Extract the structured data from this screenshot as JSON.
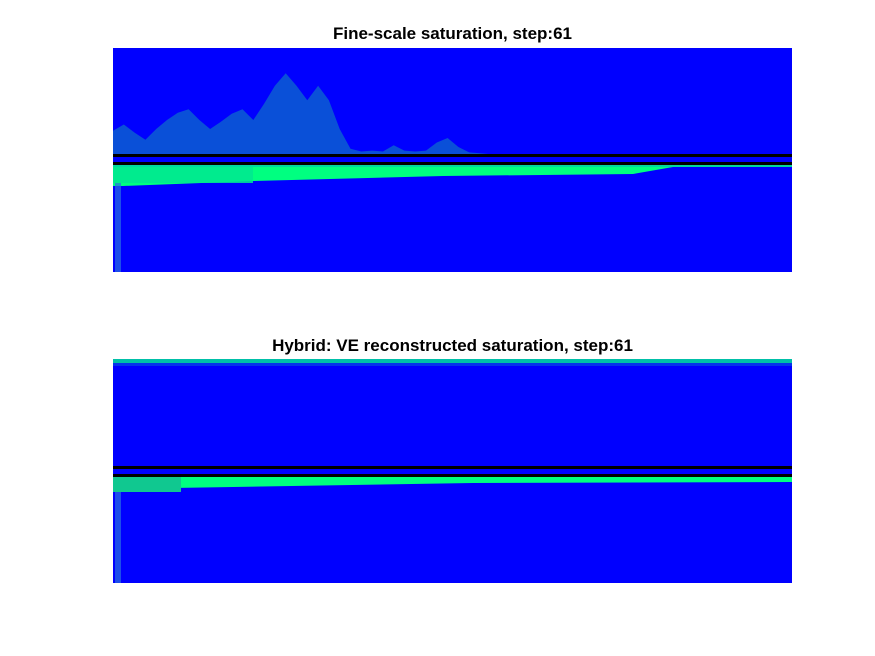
{
  "figure": {
    "background": "#ffffff"
  },
  "panels": [
    {
      "title": "Fine-scale saturation, step:61"
    },
    {
      "title": "Hybrid: VE reconstructed saturation, step:61"
    }
  ],
  "chart_data": [
    {
      "type": "heatmap",
      "title": "Fine-scale saturation, step:61",
      "xlabel": "",
      "ylabel": "",
      "axes_visible": false,
      "grid": false,
      "colormap": "winter",
      "colors": {
        "low": "#0000ff",
        "plume": "#0a50d8",
        "high": "#00ff80",
        "interface": "#000000"
      },
      "interface_lines": 2,
      "upper_plume_profile": [
        0.28,
        0.35,
        0.26,
        0.18,
        0.3,
        0.4,
        0.48,
        0.52,
        0.4,
        0.3,
        0.38,
        0.47,
        0.52,
        0.4,
        0.58,
        0.78,
        0.92,
        0.78,
        0.62,
        0.78,
        0.62,
        0.3,
        0.08,
        0.05,
        0.06,
        0.05,
        0.12,
        0.06,
        0.05,
        0.06,
        0.15,
        0.2,
        0.1,
        0.04,
        0.03,
        0.02,
        0.02,
        0.01,
        0.01,
        0.0
      ],
      "lower_band_extent": 1.0
    },
    {
      "type": "heatmap",
      "title": "Hybrid: VE reconstructed saturation, step:61",
      "xlabel": "",
      "ylabel": "",
      "axes_visible": false,
      "grid": false,
      "colormap": "winter",
      "colors": {
        "low": "#0000ff",
        "high": "#00ff80",
        "interface": "#000000"
      },
      "interface_lines": 2,
      "top_band_extent": 1.0,
      "lower_band_extent": 1.0
    }
  ]
}
